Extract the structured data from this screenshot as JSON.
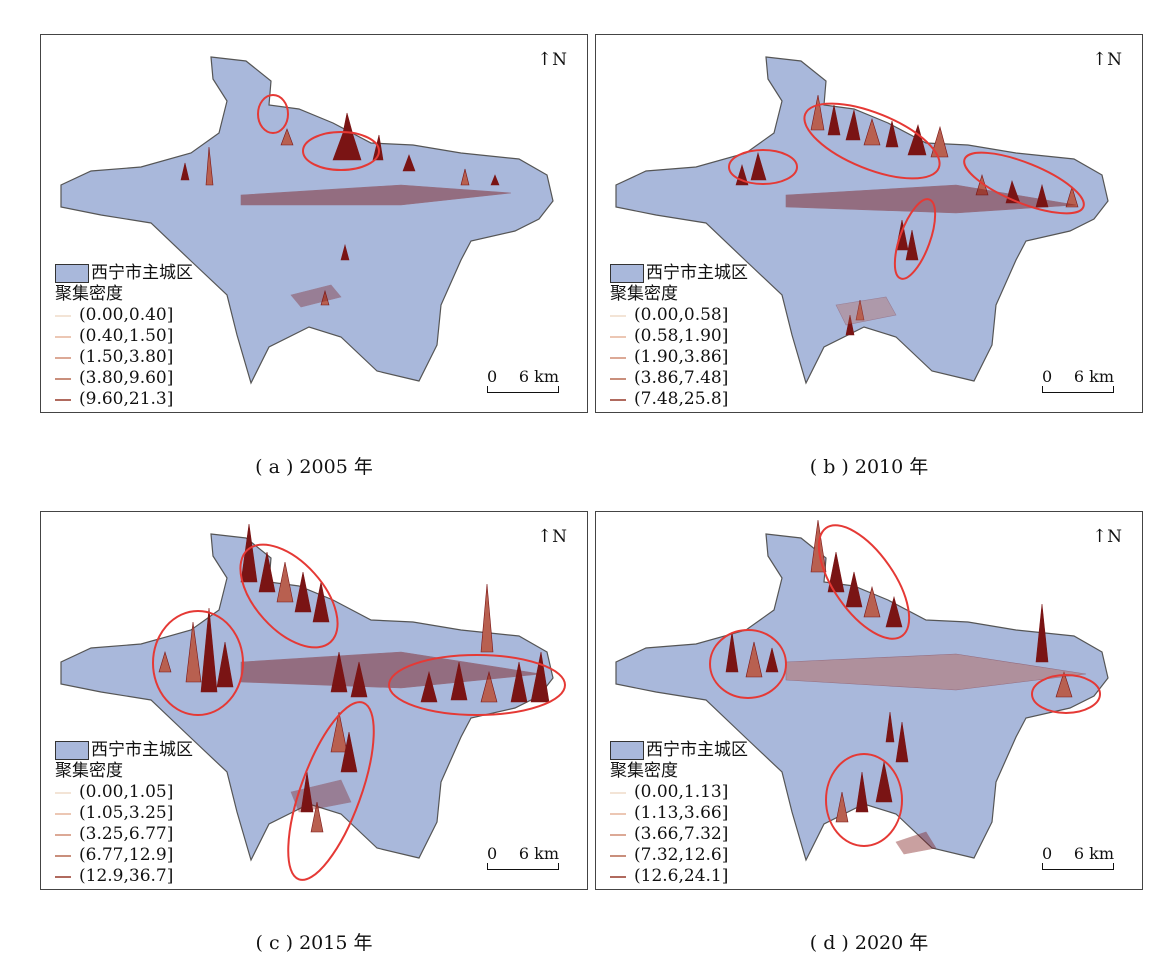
{
  "colors": {
    "region_fill": "#a9b8db",
    "region_stroke": "#555555",
    "spike_dark": "#7a1414",
    "spike_light": "#b86050",
    "highlight": "#e53935",
    "legend_lines": [
      "#f3e4d6",
      "#ecc7b4",
      "#dca996",
      "#c98f7c",
      "#b06a5e"
    ]
  },
  "north_label": "N",
  "north_icon": "north-arrow-icon",
  "panels": [
    {
      "region_label": "西宁市主城区",
      "legend_title": "聚集密度",
      "classes": [
        "(0.00,0.40]",
        "(0.40,1.50]",
        "(1.50,3.80]",
        "(3.80,9.60]",
        "(9.60,21.3]"
      ],
      "scale": {
        "start": "0",
        "end": "6 km"
      },
      "caption": "( a ) 2005 年"
    },
    {
      "region_label": "西宁市主城区",
      "legend_title": "聚集密度",
      "classes": [
        "(0.00,0.58]",
        "(0.58,1.90]",
        "(1.90,3.86]",
        "(3.86,7.48]",
        "(7.48,25.8]"
      ],
      "scale": {
        "start": "0",
        "end": "6 km"
      },
      "caption": "( b ) 2010 年"
    },
    {
      "region_label": "西宁市主城区",
      "legend_title": "聚集密度",
      "classes": [
        "(0.00,1.05]",
        "(1.05,3.25]",
        "(3.25,6.77]",
        "(6.77,12.9]",
        "(12.9,36.7]"
      ],
      "scale": {
        "start": "0",
        "end": "6 km"
      },
      "caption": "( c ) 2015 年"
    },
    {
      "region_label": "西宁市主城区",
      "legend_title": "聚集密度",
      "classes": [
        "(0.00,1.13]",
        "(1.13,3.66]",
        "(3.66,7.32]",
        "(7.32,12.6]",
        "(12.6,24.1]"
      ],
      "scale": {
        "start": "0",
        "end": "6 km"
      },
      "caption": "( d ) 2020 年"
    }
  ]
}
